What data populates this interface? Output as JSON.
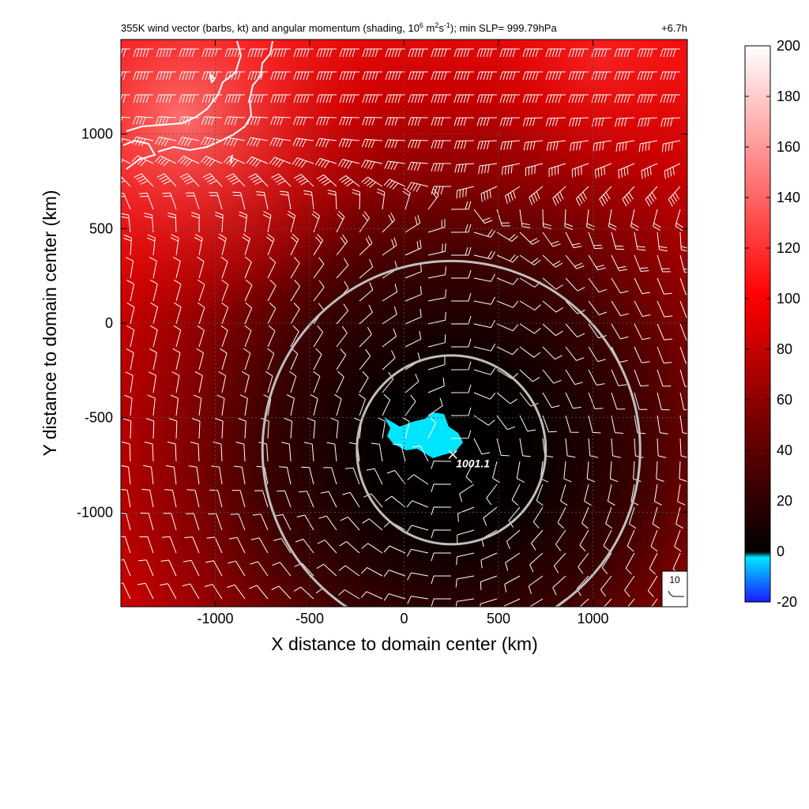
{
  "header": {
    "title_pre": "355K wind vector (barbs, kt) and angular momentum (shading, 10",
    "title_exp1": "6",
    "title_mid": " m",
    "title_exp2": "2",
    "title_s": "s",
    "title_exp3": "-1",
    "title_post": "); min SLP= 999.79hPa",
    "time_label": "+6.7h"
  },
  "chart_data": {
    "type": "heatmap",
    "xlabel": "X distance to domain center (km)",
    "ylabel": "Y distance to domain center (km)",
    "xlim": [
      -1500,
      1500
    ],
    "ylim": [
      -1500,
      1500
    ],
    "x_ticks": [
      -1000,
      -500,
      0,
      500,
      1000
    ],
    "y_ticks": [
      -1000,
      -500,
      0,
      500,
      1000
    ],
    "x_tick_labels": [
      "-1000",
      "-500",
      "0",
      "500",
      "1000"
    ],
    "y_tick_labels": [
      "-1000",
      "-500",
      "0",
      "500",
      "1000"
    ],
    "grid": true,
    "colorbar": {
      "min": -20,
      "max": 200,
      "ticks": [
        200,
        180,
        160,
        140,
        120,
        100,
        80,
        60,
        40,
        20,
        0,
        -20
      ],
      "tick_labels": [
        "200",
        "180",
        "160",
        "140",
        "120",
        "100",
        "80",
        "60",
        "40",
        "20",
        "0",
        "-20"
      ],
      "colors": [
        "#1a1aff",
        "#00e5ff",
        "#000000",
        "#7a0000",
        "#ff0000",
        "#ffffff"
      ]
    },
    "center": {
      "x": 250,
      "y": -670
    },
    "circles_radius_km": [
      500,
      1000
    ],
    "slp_annotation": {
      "text": "1001.1",
      "x": 300,
      "y": -720
    },
    "reference_barb": {
      "label": "10"
    }
  }
}
